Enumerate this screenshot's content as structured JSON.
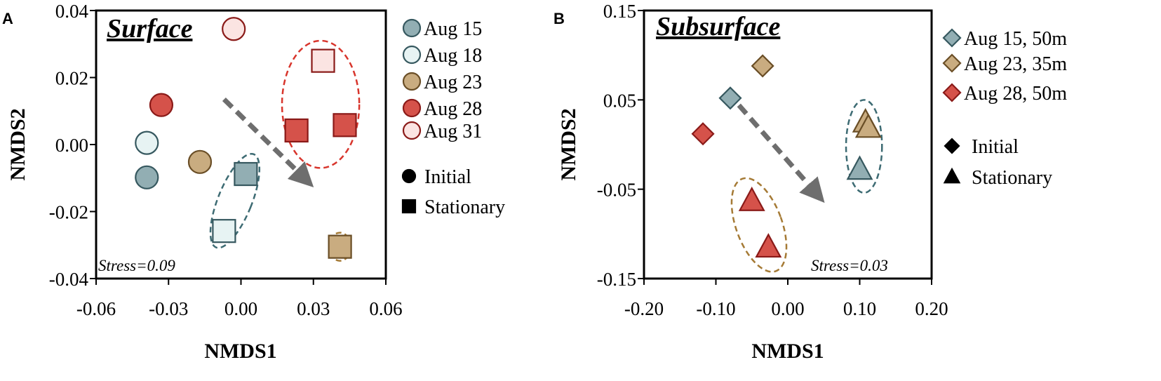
{
  "chart_data": [
    {
      "type": "scatter",
      "panel_letter": "A",
      "title": "Surface",
      "xlabel": "NMDS1",
      "ylabel": "NMDS2",
      "xlim": [
        -0.06,
        0.06
      ],
      "ylim": [
        -0.04,
        0.04
      ],
      "xticks": [
        "-0.06",
        "-0.03",
        "0.00",
        "0.03",
        "0.06"
      ],
      "yticks": [
        "0.04",
        "0.02",
        "0.00",
        "-0.02",
        "-0.04"
      ],
      "stress": "Stress=0.09",
      "legend": {
        "series": [
          "Aug 15",
          "Aug 18",
          "Aug 23",
          "Aug 28",
          "Aug 31"
        ],
        "shapes": [
          "Initial",
          "Stationary"
        ],
        "placement": "right"
      },
      "colors": {
        "Aug 15": {
          "fill": "#92aeb3",
          "stroke": "#36585f"
        },
        "Aug 18": {
          "fill": "#e7f3f3",
          "stroke": "#36585f"
        },
        "Aug 23": {
          "fill": "#c9ac80",
          "stroke": "#6a4e26"
        },
        "Aug 28": {
          "fill": "#d5524a",
          "stroke": "#8a1a18"
        },
        "Aug 31": {
          "fill": "#fbe4e2",
          "stroke": "#8a1a18"
        }
      },
      "points": [
        {
          "series": "Aug 31",
          "shape": "Initial",
          "x": -0.003,
          "y": 0.0345
        },
        {
          "series": "Aug 28",
          "shape": "Initial",
          "x": -0.033,
          "y": 0.0118
        },
        {
          "series": "Aug 18",
          "shape": "Initial",
          "x": -0.039,
          "y": 0.0005
        },
        {
          "series": "Aug 15",
          "shape": "Initial",
          "x": -0.039,
          "y": -0.0098
        },
        {
          "series": "Aug 23",
          "shape": "Initial",
          "x": -0.017,
          "y": -0.0052
        },
        {
          "series": "Aug 31",
          "shape": "Stationary",
          "x": 0.034,
          "y": 0.025
        },
        {
          "series": "Aug 28",
          "shape": "Stationary",
          "x": 0.023,
          "y": 0.0042
        },
        {
          "series": "Aug 28",
          "shape": "Stationary",
          "x": 0.043,
          "y": 0.0058
        },
        {
          "series": "Aug 15",
          "shape": "Stationary",
          "x": 0.002,
          "y": -0.0088
        },
        {
          "series": "Aug 18",
          "shape": "Stationary",
          "x": -0.007,
          "y": -0.0258
        },
        {
          "series": "Aug 23",
          "shape": "Stationary",
          "x": 0.041,
          "y": -0.0305
        }
      ],
      "ellipses": [
        {
          "color": "#d8352c",
          "cx": 0.033,
          "cy": 0.012,
          "rx": 0.016,
          "ry": 0.019,
          "rot": 0
        },
        {
          "color": "#3d6b73",
          "cx": -0.0025,
          "cy": -0.0168,
          "rx": 0.007,
          "ry": 0.015,
          "rot": 22
        },
        {
          "color": "#a57a35",
          "cx": 0.041,
          "cy": -0.0305,
          "rx": 0.0045,
          "ry": 0.0042,
          "rot": 0
        }
      ],
      "arrow": {
        "x1": -0.007,
        "y1": 0.0135,
        "x2": 0.0265,
        "y2": -0.0102
      }
    },
    {
      "type": "scatter",
      "panel_letter": "B",
      "title": "Subsurface",
      "xlabel": "NMDS1",
      "ylabel": "NMDS2",
      "xlim": [
        -0.2,
        0.2
      ],
      "ylim": [
        -0.15,
        0.15
      ],
      "xticks": [
        "-0.20",
        "-0.10",
        "0.00",
        "0.10",
        "0.20"
      ],
      "yticks": [
        "0.15",
        "0.05",
        "-0.05",
        "-0.15"
      ],
      "stress": "Stress=0.03",
      "legend": {
        "series": [
          "Aug 15, 50m",
          "Aug 23, 35m",
          "Aug 28, 50m"
        ],
        "shapes": [
          "Initial",
          "Stationary"
        ],
        "placement": "right"
      },
      "colors": {
        "Aug 15, 50m": {
          "fill": "#92aeb3",
          "stroke": "#36585f"
        },
        "Aug 23, 35m": {
          "fill": "#c9ac80",
          "stroke": "#6a4e26"
        },
        "Aug 28, 50m": {
          "fill": "#d5524a",
          "stroke": "#8a1a18"
        }
      },
      "points": [
        {
          "series": "Aug 23, 35m",
          "shape": "Initial",
          "x": -0.035,
          "y": 0.088
        },
        {
          "series": "Aug 15, 50m",
          "shape": "Initial",
          "x": -0.08,
          "y": 0.052
        },
        {
          "series": "Aug 28, 50m",
          "shape": "Initial",
          "x": -0.118,
          "y": 0.012
        },
        {
          "series": "Aug 23, 35m",
          "shape": "Stationary",
          "x": 0.108,
          "y": 0.025
        },
        {
          "series": "Aug 23, 35m",
          "shape": "Stationary",
          "x": 0.112,
          "y": 0.019
        },
        {
          "series": "Aug 15, 50m",
          "shape": "Stationary",
          "x": 0.1,
          "y": -0.028
        },
        {
          "series": "Aug 28, 50m",
          "shape": "Stationary",
          "x": -0.05,
          "y": -0.063
        },
        {
          "series": "Aug 28, 50m",
          "shape": "Stationary",
          "x": -0.027,
          "y": -0.115
        }
      ],
      "ellipses": [
        {
          "color": "#3d6b73",
          "cx": 0.106,
          "cy": -0.002,
          "rx": 0.025,
          "ry": 0.052,
          "rot": 0
        },
        {
          "color": "#a57a35",
          "cx": -0.04,
          "cy": -0.09,
          "rx": 0.032,
          "ry": 0.055,
          "rot": -20
        }
      ],
      "arrow": {
        "x1": -0.068,
        "y1": 0.044,
        "x2": 0.04,
        "y2": -0.055
      }
    }
  ]
}
